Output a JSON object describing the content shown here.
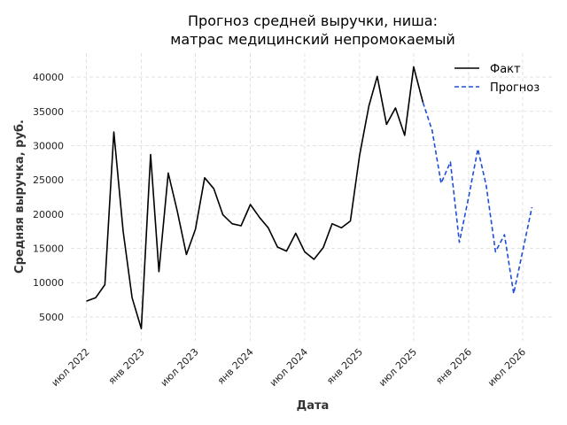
{
  "chart_data": {
    "type": "line",
    "title_lines": [
      "Прогноз средней выручки, ниша:",
      "матрас медицинский непромокаемый"
    ],
    "xlabel": "Дата",
    "ylabel": "Средняя выручка, руб.",
    "x_ticks": [
      {
        "date": "2022-07-01",
        "label": "июл 2022"
      },
      {
        "date": "2023-01-01",
        "label": "янв 2023"
      },
      {
        "date": "2023-07-01",
        "label": "июл 2023"
      },
      {
        "date": "2024-01-01",
        "label": "янв 2024"
      },
      {
        "date": "2024-07-01",
        "label": "июл 2024"
      },
      {
        "date": "2025-01-01",
        "label": "янв 2025"
      },
      {
        "date": "2025-07-01",
        "label": "июл 2025"
      },
      {
        "date": "2026-01-01",
        "label": "янв 2026"
      },
      {
        "date": "2026-07-01",
        "label": "июл 2026"
      }
    ],
    "y_ticks": [
      5000,
      10000,
      15000,
      20000,
      25000,
      30000,
      35000,
      40000
    ],
    "xlim": [
      "2022-05-10",
      "2026-10-10"
    ],
    "ylim": [
      1500,
      43500
    ],
    "grid": true,
    "legend_position": "top-right",
    "colors": {
      "fact": "#000000",
      "forecast": "#1f4fd6"
    },
    "series": [
      {
        "name": "Факт",
        "style": "solid",
        "points": [
          [
            "2022-07-01",
            7300
          ],
          [
            "2022-08-01",
            7800
          ],
          [
            "2022-09-01",
            9700
          ],
          [
            "2022-10-01",
            32000
          ],
          [
            "2022-11-01",
            17500
          ],
          [
            "2022-12-01",
            7800
          ],
          [
            "2023-01-01",
            3300
          ],
          [
            "2023-02-01",
            28700
          ],
          [
            "2023-03-01",
            11600
          ],
          [
            "2023-04-01",
            26000
          ],
          [
            "2023-05-01",
            20500
          ],
          [
            "2023-06-01",
            14100
          ],
          [
            "2023-07-01",
            17800
          ],
          [
            "2023-08-01",
            25300
          ],
          [
            "2023-09-01",
            23700
          ],
          [
            "2023-10-01",
            19900
          ],
          [
            "2023-11-01",
            18600
          ],
          [
            "2023-12-01",
            18300
          ],
          [
            "2024-01-01",
            21400
          ],
          [
            "2024-02-01",
            19500
          ],
          [
            "2024-03-01",
            18000
          ],
          [
            "2024-04-01",
            15200
          ],
          [
            "2024-05-01",
            14600
          ],
          [
            "2024-06-01",
            17200
          ],
          [
            "2024-07-01",
            14500
          ],
          [
            "2024-08-01",
            13400
          ],
          [
            "2024-09-01",
            15100
          ],
          [
            "2024-10-01",
            18600
          ],
          [
            "2024-11-01",
            18000
          ],
          [
            "2024-12-01",
            19000
          ],
          [
            "2025-01-01",
            28600
          ],
          [
            "2025-02-01",
            35800
          ],
          [
            "2025-03-01",
            40100
          ],
          [
            "2025-04-01",
            33100
          ],
          [
            "2025-05-01",
            35500
          ],
          [
            "2025-06-01",
            31500
          ],
          [
            "2025-07-01",
            41500
          ],
          [
            "2025-08-01",
            36300
          ]
        ]
      },
      {
        "name": "Прогноз",
        "style": "dashed",
        "points": [
          [
            "2025-08-01",
            36300
          ],
          [
            "2025-09-01",
            32200
          ],
          [
            "2025-10-01",
            24500
          ],
          [
            "2025-11-01",
            27600
          ],
          [
            "2025-12-01",
            15900
          ],
          [
            "2026-01-01",
            22500
          ],
          [
            "2026-02-01",
            29500
          ],
          [
            "2026-03-01",
            24200
          ],
          [
            "2026-04-01",
            14500
          ],
          [
            "2026-05-01",
            17000
          ],
          [
            "2026-06-01",
            8400
          ],
          [
            "2026-07-01",
            14600
          ],
          [
            "2026-08-01",
            21000
          ]
        ]
      }
    ]
  }
}
